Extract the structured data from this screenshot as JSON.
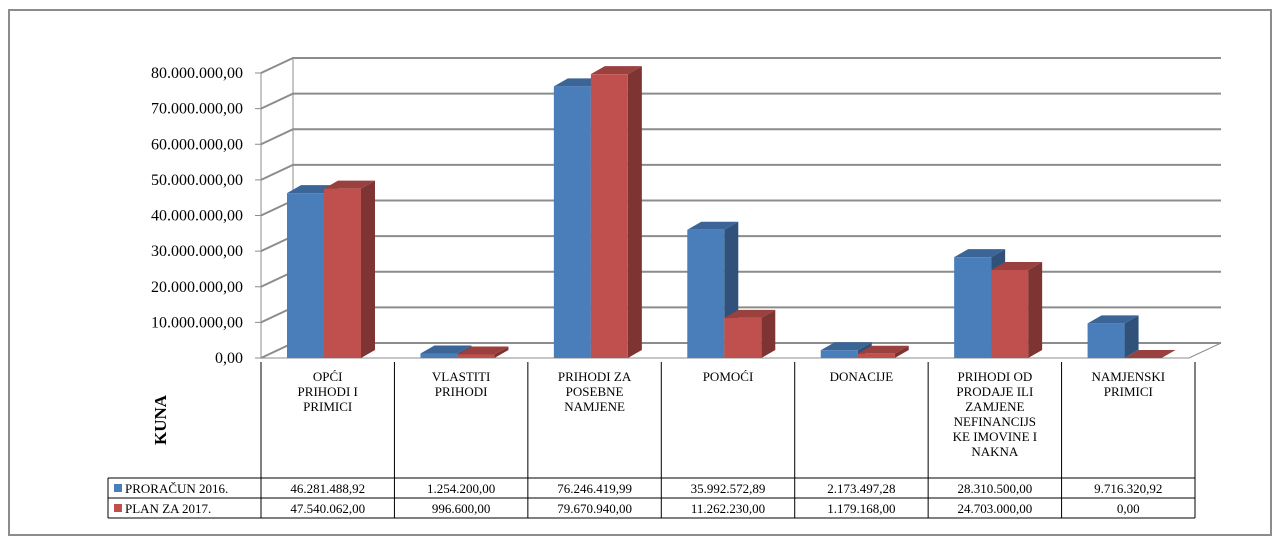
{
  "chart_data": {
    "type": "bar",
    "ylabel": "KUNA",
    "ylim": [
      0,
      80000000
    ],
    "yticks": [
      "0,00",
      "10.000.000,00",
      "20.000.000,00",
      "30.000.000,00",
      "40.000.000,00",
      "50.000.000,00",
      "60.000.000,00",
      "70.000.000,00",
      "80.000.000,00"
    ],
    "categories": [
      [
        "OPĆI",
        "PRIHODI I",
        "PRIMICI"
      ],
      [
        "VLASTITI",
        "PRIHODI"
      ],
      [
        "PRIHODI ZA",
        "POSEBNE",
        "NAMJENE"
      ],
      [
        "POMOĆI"
      ],
      [
        "DONACIJE"
      ],
      [
        "PRIHODI OD",
        "PRODAJE ILI",
        "ZAMJENE",
        "NEFINANCIJS",
        "KE IMOVINE I",
        "NAKNA"
      ],
      [
        "NAMJENSKI",
        "PRIMICI"
      ]
    ],
    "series": [
      {
        "name": "PRORAČUN 2016.",
        "color": "#4a7ebb",
        "values": [
          46281488.92,
          1254200.0,
          76246419.99,
          35992572.89,
          2173497.28,
          28310500.0,
          9716320.92
        ],
        "labels": [
          "46.281.488,92",
          "1.254.200,00",
          "76.246.419,99",
          "35.992.572,89",
          "2.173.497,28",
          "28.310.500,00",
          "9.716.320,92"
        ]
      },
      {
        "name": "PLAN ZA 2017.",
        "color": "#c0504d",
        "values": [
          47540062.0,
          996600.0,
          79670940.0,
          11262230.0,
          1179168.0,
          24703000.0,
          0.0
        ],
        "labels": [
          "47.540.062,00",
          "996.600,00",
          "79.670.940,00",
          "11.262.230,00",
          "1.179.168,00",
          "24.703.000,00",
          "0,00"
        ]
      }
    ],
    "grid": true,
    "legend": "data-table"
  }
}
